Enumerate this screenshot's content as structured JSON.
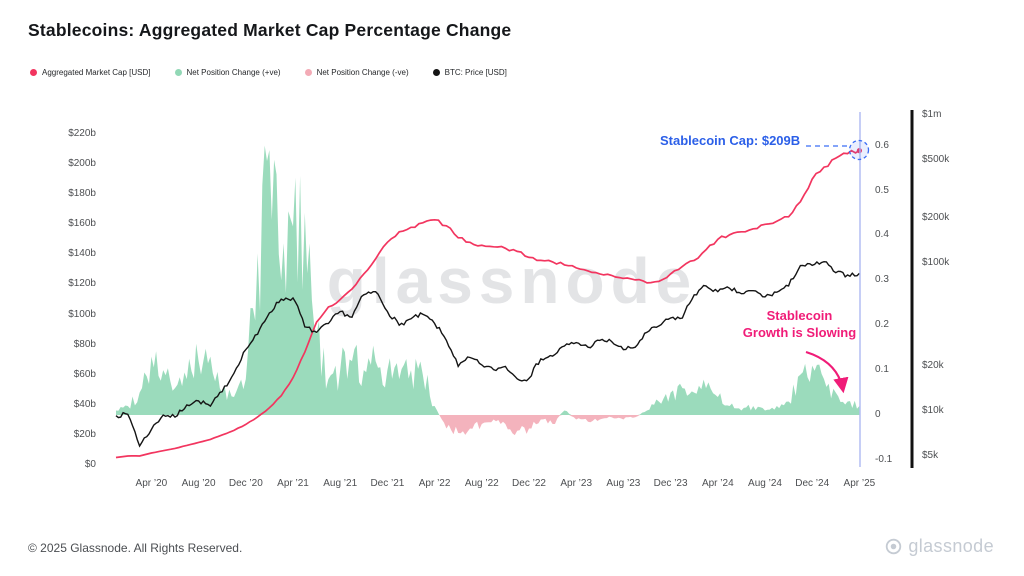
{
  "title": "Stablecoins: Aggregated Market Cap Percentage Change",
  "watermark": "glassnode",
  "legend": [
    {
      "label": "Aggregated Market Cap [USD]",
      "color": "#f2355f"
    },
    {
      "label": "Net Position Change (+ve)",
      "color": "#92d8b6"
    },
    {
      "label": "Net Position Change (-ve)",
      "color": "#f3abb6"
    },
    {
      "label": "BTC: Price [USD]",
      "color": "#141414"
    }
  ],
  "annotations": {
    "cap_label": "Stablecoin Cap: $209B",
    "slowing_line1": "Stablecoin",
    "slowing_line2": "Growth is Slowing"
  },
  "footer": {
    "copyright": "© 2025 Glassnode. All Rights Reserved.",
    "brand": "glassnode"
  },
  "colors": {
    "market_cap_line": "#f2355f",
    "net_positive": "#92d8b6",
    "net_negative": "#f3abb6",
    "btc_line": "#141414",
    "annotation_blue": "#2b5fe8",
    "annotation_pink": "#f01c78",
    "current_date_line": "#aeb9f2"
  },
  "chart_data": {
    "type": "line+area",
    "title": "Stablecoins: Aggregated Market Cap Percentage Change",
    "x_start": "2020-01",
    "x_end": "2025-04",
    "x_unit": "month",
    "legend_position": "top-left",
    "grid": false,
    "axes": {
      "left": {
        "name": "Aggregated Market Cap [USD]",
        "min": 0,
        "max": 220,
        "ticks": [
          {
            "label": "$0",
            "value": 0
          },
          {
            "label": "$20b",
            "value": 20
          },
          {
            "label": "$40b",
            "value": 40
          },
          {
            "label": "$60b",
            "value": 60
          },
          {
            "label": "$80b",
            "value": 80
          },
          {
            "label": "$100b",
            "value": 100
          },
          {
            "label": "$120b",
            "value": 120
          },
          {
            "label": "$140b",
            "value": 140
          },
          {
            "label": "$160b",
            "value": 160
          },
          {
            "label": "$180b",
            "value": 180
          },
          {
            "label": "$200b",
            "value": 200
          },
          {
            "label": "$220b",
            "value": 220
          }
        ]
      },
      "right_inner": {
        "name": "Net Position Change",
        "min": -0.1,
        "max": 0.6,
        "ticks": [
          {
            "label": "-0.1",
            "value": -0.1
          },
          {
            "label": "0",
            "value": 0
          },
          {
            "label": "0.1",
            "value": 0.1
          },
          {
            "label": "0.2",
            "value": 0.2
          },
          {
            "label": "0.3",
            "value": 0.3
          },
          {
            "label": "0.4",
            "value": 0.4
          },
          {
            "label": "0.5",
            "value": 0.5
          },
          {
            "label": "0.6",
            "value": 0.6
          }
        ]
      },
      "right_outer": {
        "name": "BTC: Price [USD]",
        "scale": "log",
        "ticks": [
          {
            "label": "$5k",
            "value": 5000
          },
          {
            "label": "$10k",
            "value": 10000
          },
          {
            "label": "$20k",
            "value": 20000
          },
          {
            "label": "$100k",
            "value": 100000
          },
          {
            "label": "$200k",
            "value": 200000
          },
          {
            "label": "$500k",
            "value": 500000
          },
          {
            "label": "$1m",
            "value": 1000000
          }
        ]
      },
      "x": {
        "ticks": [
          {
            "label": "Apr ’20",
            "index": 3
          },
          {
            "label": "Aug ’20",
            "index": 7
          },
          {
            "label": "Dec ’20",
            "index": 11
          },
          {
            "label": "Apr ’21",
            "index": 15
          },
          {
            "label": "Aug ’21",
            "index": 19
          },
          {
            "label": "Dec ’21",
            "index": 23
          },
          {
            "label": "Apr ’22",
            "index": 27
          },
          {
            "label": "Aug ’22",
            "index": 31
          },
          {
            "label": "Dec ’22",
            "index": 35
          },
          {
            "label": "Apr ’23",
            "index": 39
          },
          {
            "label": "Aug ’23",
            "index": 43
          },
          {
            "label": "Dec ’23",
            "index": 47
          },
          {
            "label": "Apr ’24",
            "index": 51
          },
          {
            "label": "Aug ’24",
            "index": 55
          },
          {
            "label": "Dec ’24",
            "index": 59
          },
          {
            "label": "Apr ’25",
            "index": 63
          }
        ]
      }
    },
    "series": [
      {
        "name": "Aggregated Market Cap [USD]",
        "axis": "left",
        "color": "#f2355f",
        "unit": "$ billions",
        "values": [
          5,
          6,
          6,
          8,
          9.5,
          11,
          13,
          15,
          17,
          20,
          23,
          27,
          32,
          38,
          46,
          58,
          75,
          95,
          105,
          110,
          117,
          127,
          137,
          148,
          155,
          158,
          161,
          163,
          159,
          151,
          148,
          146,
          145,
          144,
          142,
          138,
          136,
          135,
          133,
          131,
          129,
          127,
          126,
          124,
          123,
          121,
          122,
          127,
          132,
          136,
          143,
          150,
          153,
          155,
          157,
          160,
          162,
          165,
          175,
          190,
          198,
          204,
          207,
          209
        ]
      },
      {
        "name": "Net Position Change",
        "axis": "right_inner",
        "pos_color": "#92d8b6",
        "neg_color": "#f3abb6",
        "unit": "fraction",
        "values": [
          0.01,
          0.02,
          0.05,
          0.13,
          0.1,
          0.06,
          0.08,
          0.12,
          0.13,
          0.05,
          0.04,
          0.08,
          0.36,
          0.59,
          0.3,
          0.42,
          0.45,
          0.18,
          0.08,
          0.1,
          0.12,
          0.1,
          0.12,
          0.1,
          0.08,
          0.1,
          0.09,
          0.02,
          -0.03,
          -0.04,
          -0.03,
          -0.02,
          -0.01,
          -0.02,
          -0.035,
          -0.03,
          -0.01,
          -0.02,
          0.01,
          -0.01,
          -0.015,
          -0.01,
          -0.005,
          -0.01,
          -0.005,
          0.01,
          0.03,
          0.05,
          0.06,
          0.05,
          0.06,
          0.04,
          0.02,
          0.01,
          0.02,
          0.01,
          0.02,
          0.03,
          0.09,
          0.11,
          0.08,
          0.05,
          0.03,
          0.02
        ]
      },
      {
        "name": "BTC: Price [USD]",
        "axis": "right_outer",
        "color": "#141414",
        "unit": "USD",
        "values": [
          9300,
          9500,
          5800,
          7500,
          9400,
          9100,
          11000,
          11700,
          10800,
          13500,
          18000,
          26000,
          33000,
          46000,
          57000,
          58000,
          37000,
          34000,
          39000,
          47000,
          43000,
          61000,
          64000,
          47000,
          38000,
          42000,
          45000,
          39000,
          30000,
          20000,
          23000,
          20500,
          19000,
          20000,
          16500,
          16600,
          22500,
          23500,
          27500,
          29000,
          27000,
          30000,
          29500,
          26000,
          27000,
          34000,
          37500,
          42500,
          42500,
          61000,
          70000,
          64000,
          67500,
          62000,
          65000,
          59000,
          63500,
          70000,
          96000,
          96500,
          102000,
          86000,
          83000,
          85000
        ]
      }
    ],
    "highlight": {
      "label": "Stablecoin Cap: $209B",
      "x": "2025-04",
      "value": 209
    }
  }
}
